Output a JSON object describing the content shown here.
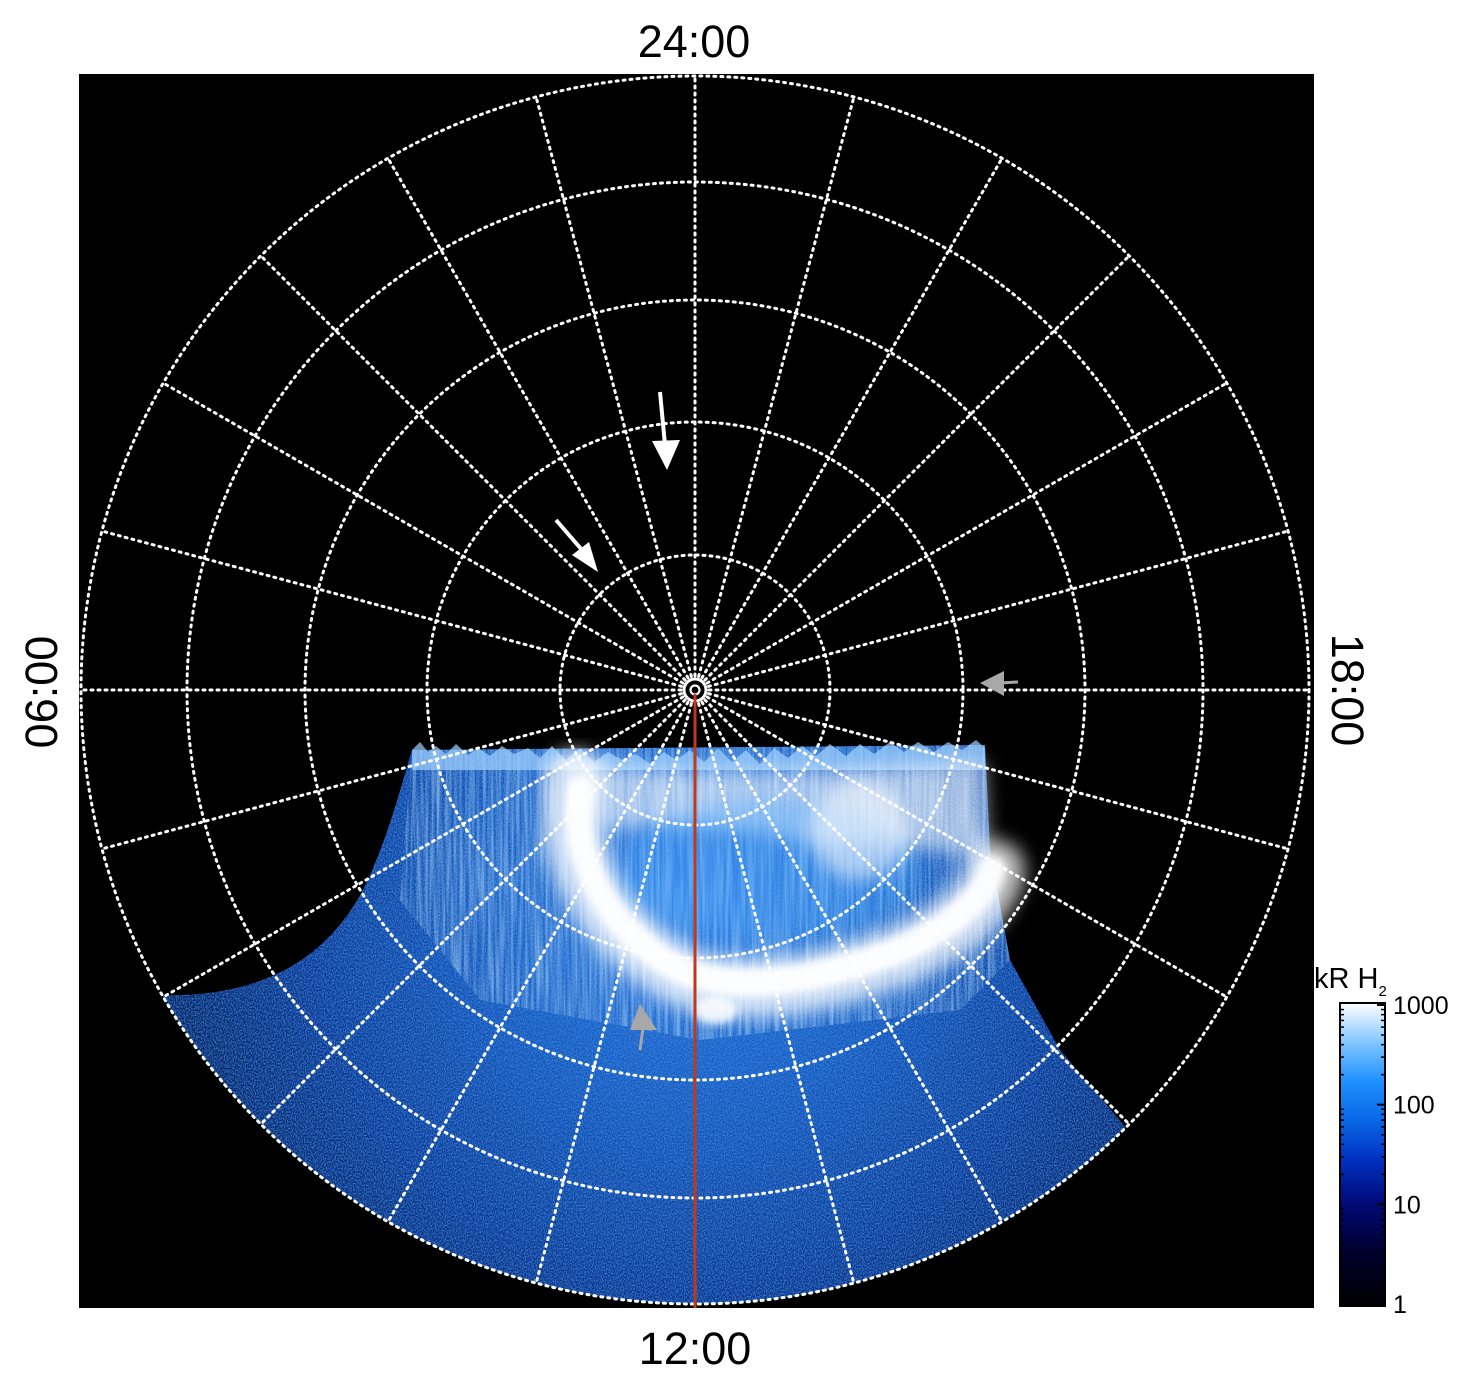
{
  "local_time_labels": {
    "top": "24:00",
    "bottom": "12:00",
    "left": "06:00",
    "right": "18:00"
  },
  "colorbar": {
    "label_main": "kR H",
    "label_subscript": "2",
    "ticks": [
      "1000",
      "100",
      "10",
      "1"
    ],
    "scale": "log",
    "range": [
      1,
      1000
    ]
  },
  "colors": {
    "plot_background": "#000000",
    "page_background": "#ffffff",
    "grid": "#ffffff",
    "meridian_line": "#c0391b",
    "arrow_primary": "#ffffff",
    "arrow_secondary": "#a8a8a8",
    "colormap": [
      "#000000",
      "#00003a",
      "#001a8c",
      "#0a52d8",
      "#1e90ff",
      "#7cc4ff",
      "#ffffff"
    ]
  },
  "grid": {
    "style": "dotted",
    "meridian_spacing_hours": 1
  },
  "arrows": [
    {
      "name": "north-arrow",
      "color": "arrow_primary"
    },
    {
      "name": "northwest-arrow",
      "color": "arrow_primary"
    },
    {
      "name": "east-arrow",
      "color": "arrow_secondary"
    },
    {
      "name": "south-arrow",
      "color": "arrow_secondary"
    }
  ]
}
